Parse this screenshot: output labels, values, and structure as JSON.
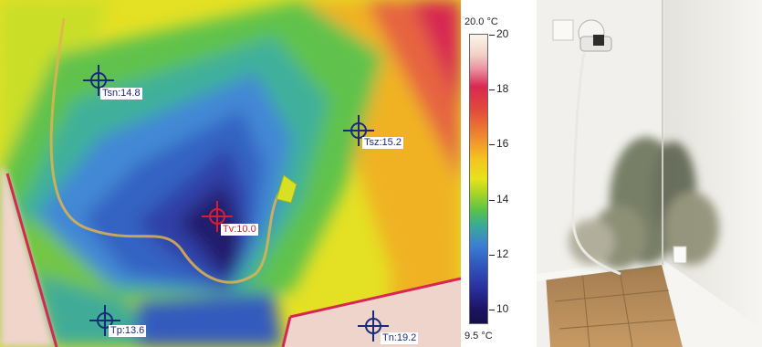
{
  "thermal": {
    "markers": [
      {
        "label": "Tsn:14.8",
        "color": "#1a2a7a"
      },
      {
        "label": "Tsz:15.2",
        "color": "#1a2a7a"
      },
      {
        "label": "Tv:10.0",
        "color": "#d81e2e"
      },
      {
        "label": "Tp:13.6",
        "color": "#1a2a7a"
      },
      {
        "label": "Tn:19.2",
        "color": "#1a2a7a"
      }
    ]
  },
  "scale": {
    "top_label": "20.0 °C",
    "bottom_label": "9.5 °C",
    "ticks": [
      "20",
      "18",
      "16",
      "14",
      "12",
      "10"
    ]
  },
  "photo": {}
}
